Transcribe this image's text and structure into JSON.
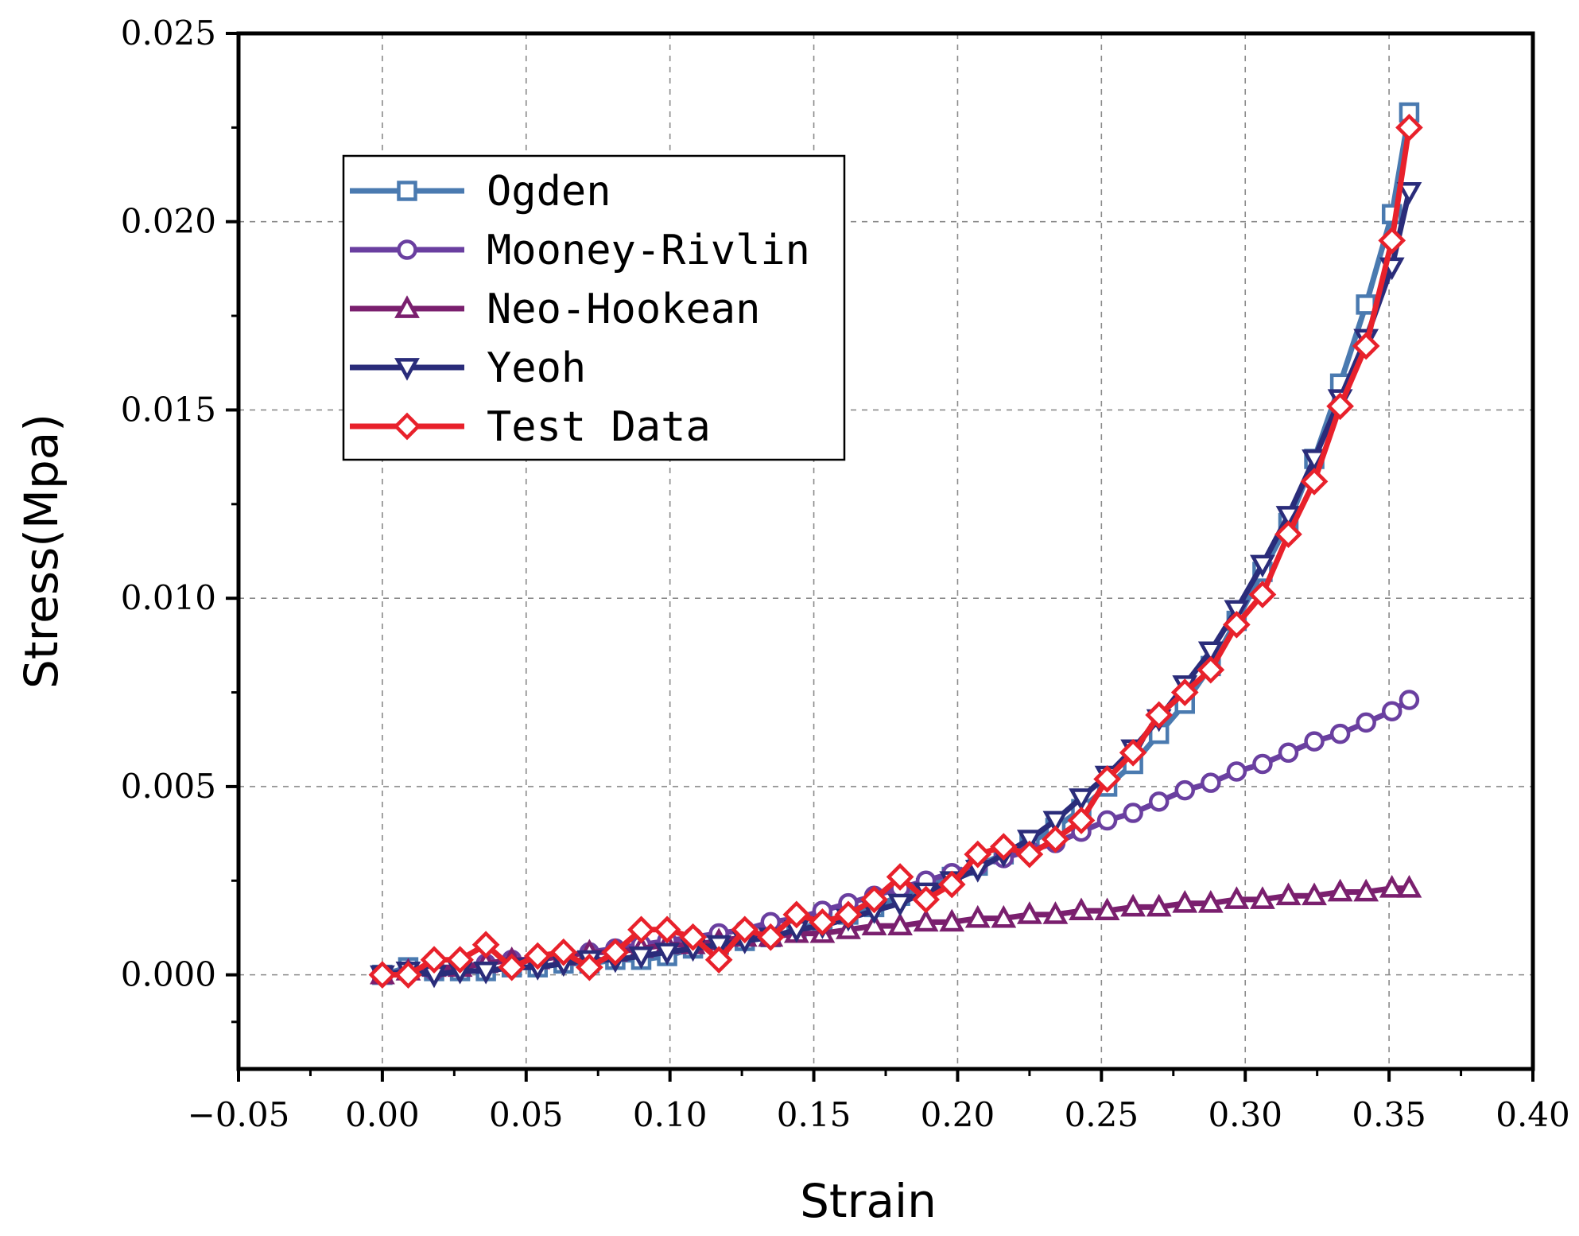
{
  "chart_data": {
    "type": "line",
    "title": "",
    "xlabel": "Strain",
    "ylabel": "Stress(Mpa)",
    "xlim": [
      -0.05,
      0.4
    ],
    "ylim": [
      -0.0025,
      0.025
    ],
    "xticks": [
      -0.05,
      0.0,
      0.05,
      0.1,
      0.15,
      0.2,
      0.25,
      0.3,
      0.35,
      0.4
    ],
    "xtick_labels": [
      "−0.05",
      "0.00",
      "0.05",
      "0.10",
      "0.15",
      "0.20",
      "0.25",
      "0.30",
      "0.35",
      "0.40"
    ],
    "yticks": [
      0.0,
      0.005,
      0.01,
      0.015,
      0.02,
      0.025
    ],
    "ytick_labels": [
      "0.000",
      "0.005",
      "0.010",
      "0.015",
      "0.020",
      "0.025"
    ],
    "grid": true,
    "legend_position": "top-left",
    "x": [
      0.0,
      0.009,
      0.018,
      0.027,
      0.036,
      0.045,
      0.054,
      0.063,
      0.072,
      0.081,
      0.09,
      0.099,
      0.108,
      0.117,
      0.126,
      0.135,
      0.144,
      0.153,
      0.162,
      0.171,
      0.18,
      0.189,
      0.198,
      0.207,
      0.216,
      0.225,
      0.234,
      0.243,
      0.252,
      0.261,
      0.27,
      0.279,
      0.288,
      0.297,
      0.306,
      0.315,
      0.324,
      0.333,
      0.342,
      0.351,
      0.357
    ],
    "series": [
      {
        "name": "Ogden",
        "color": "#4a7ab0",
        "marker": "square",
        "values": [
          0.0,
          0.0002,
          0.0001,
          0.0001,
          0.0001,
          0.0002,
          0.0002,
          0.0003,
          0.0003,
          0.0004,
          0.0004,
          0.0005,
          0.0007,
          0.0008,
          0.0009,
          0.001,
          0.0012,
          0.0014,
          0.0016,
          0.0018,
          0.0021,
          0.0023,
          0.0026,
          0.0029,
          0.0032,
          0.0035,
          0.0039,
          0.0044,
          0.005,
          0.0056,
          0.0064,
          0.0072,
          0.0082,
          0.0094,
          0.0107,
          0.012,
          0.0137,
          0.0157,
          0.0178,
          0.0202,
          0.0229
        ]
      },
      {
        "name": "Mooney-Rivlin",
        "color": "#6a3fa0",
        "marker": "circle",
        "values": [
          0.0,
          0.0001,
          0.0001,
          0.0002,
          0.0003,
          0.0004,
          0.0004,
          0.0005,
          0.0006,
          0.0007,
          0.0008,
          0.0009,
          0.001,
          0.0011,
          0.0012,
          0.0014,
          0.0015,
          0.0017,
          0.0019,
          0.0021,
          0.0023,
          0.0025,
          0.0027,
          0.0029,
          0.0031,
          0.0033,
          0.0035,
          0.0038,
          0.0041,
          0.0043,
          0.0046,
          0.0049,
          0.0051,
          0.0054,
          0.0056,
          0.0059,
          0.0062,
          0.0064,
          0.0067,
          0.007,
          0.0073
        ]
      },
      {
        "name": "Neo-Hookean",
        "color": "#7a1f6e",
        "marker": "triangle-up",
        "values": [
          0.0,
          0.0001,
          0.0002,
          0.0002,
          0.0003,
          0.0004,
          0.0004,
          0.0005,
          0.0006,
          0.0006,
          0.0007,
          0.0008,
          0.0008,
          0.0009,
          0.001,
          0.001,
          0.0011,
          0.0011,
          0.0012,
          0.0013,
          0.0013,
          0.0014,
          0.0014,
          0.0015,
          0.0015,
          0.0016,
          0.0016,
          0.0017,
          0.0017,
          0.0018,
          0.0018,
          0.0019,
          0.0019,
          0.002,
          0.002,
          0.0021,
          0.0021,
          0.0022,
          0.0022,
          0.0023,
          0.0023
        ]
      },
      {
        "name": "Yeoh",
        "color": "#2a2c7a",
        "marker": "triangle-down",
        "values": [
          0.0,
          0.0001,
          0.0,
          0.0001,
          0.0001,
          0.0002,
          0.0002,
          0.0003,
          0.0004,
          0.0004,
          0.0005,
          0.0006,
          0.0007,
          0.0008,
          0.0009,
          0.001,
          0.0012,
          0.0013,
          0.0015,
          0.0017,
          0.0019,
          0.0022,
          0.0025,
          0.0028,
          0.0032,
          0.0036,
          0.0041,
          0.0047,
          0.0053,
          0.006,
          0.0068,
          0.0077,
          0.0086,
          0.0097,
          0.0109,
          0.0122,
          0.0137,
          0.0153,
          0.0169,
          0.0188,
          0.0208
        ]
      },
      {
        "name": "Test Data",
        "color": "#e8212b",
        "marker": "diamond",
        "values": [
          0.0,
          0.0,
          0.0004,
          0.0004,
          0.0008,
          0.0002,
          0.0005,
          0.0006,
          0.0002,
          0.0006,
          0.0012,
          0.0012,
          0.001,
          0.0004,
          0.0012,
          0.001,
          0.0016,
          0.0014,
          0.0016,
          0.002,
          0.0026,
          0.002,
          0.0024,
          0.0032,
          0.0034,
          0.0032,
          0.0036,
          0.0041,
          0.0052,
          0.0059,
          0.0069,
          0.0075,
          0.0081,
          0.0093,
          0.0101,
          0.0117,
          0.0131,
          0.0151,
          0.0167,
          0.0195,
          0.0225
        ]
      }
    ]
  }
}
